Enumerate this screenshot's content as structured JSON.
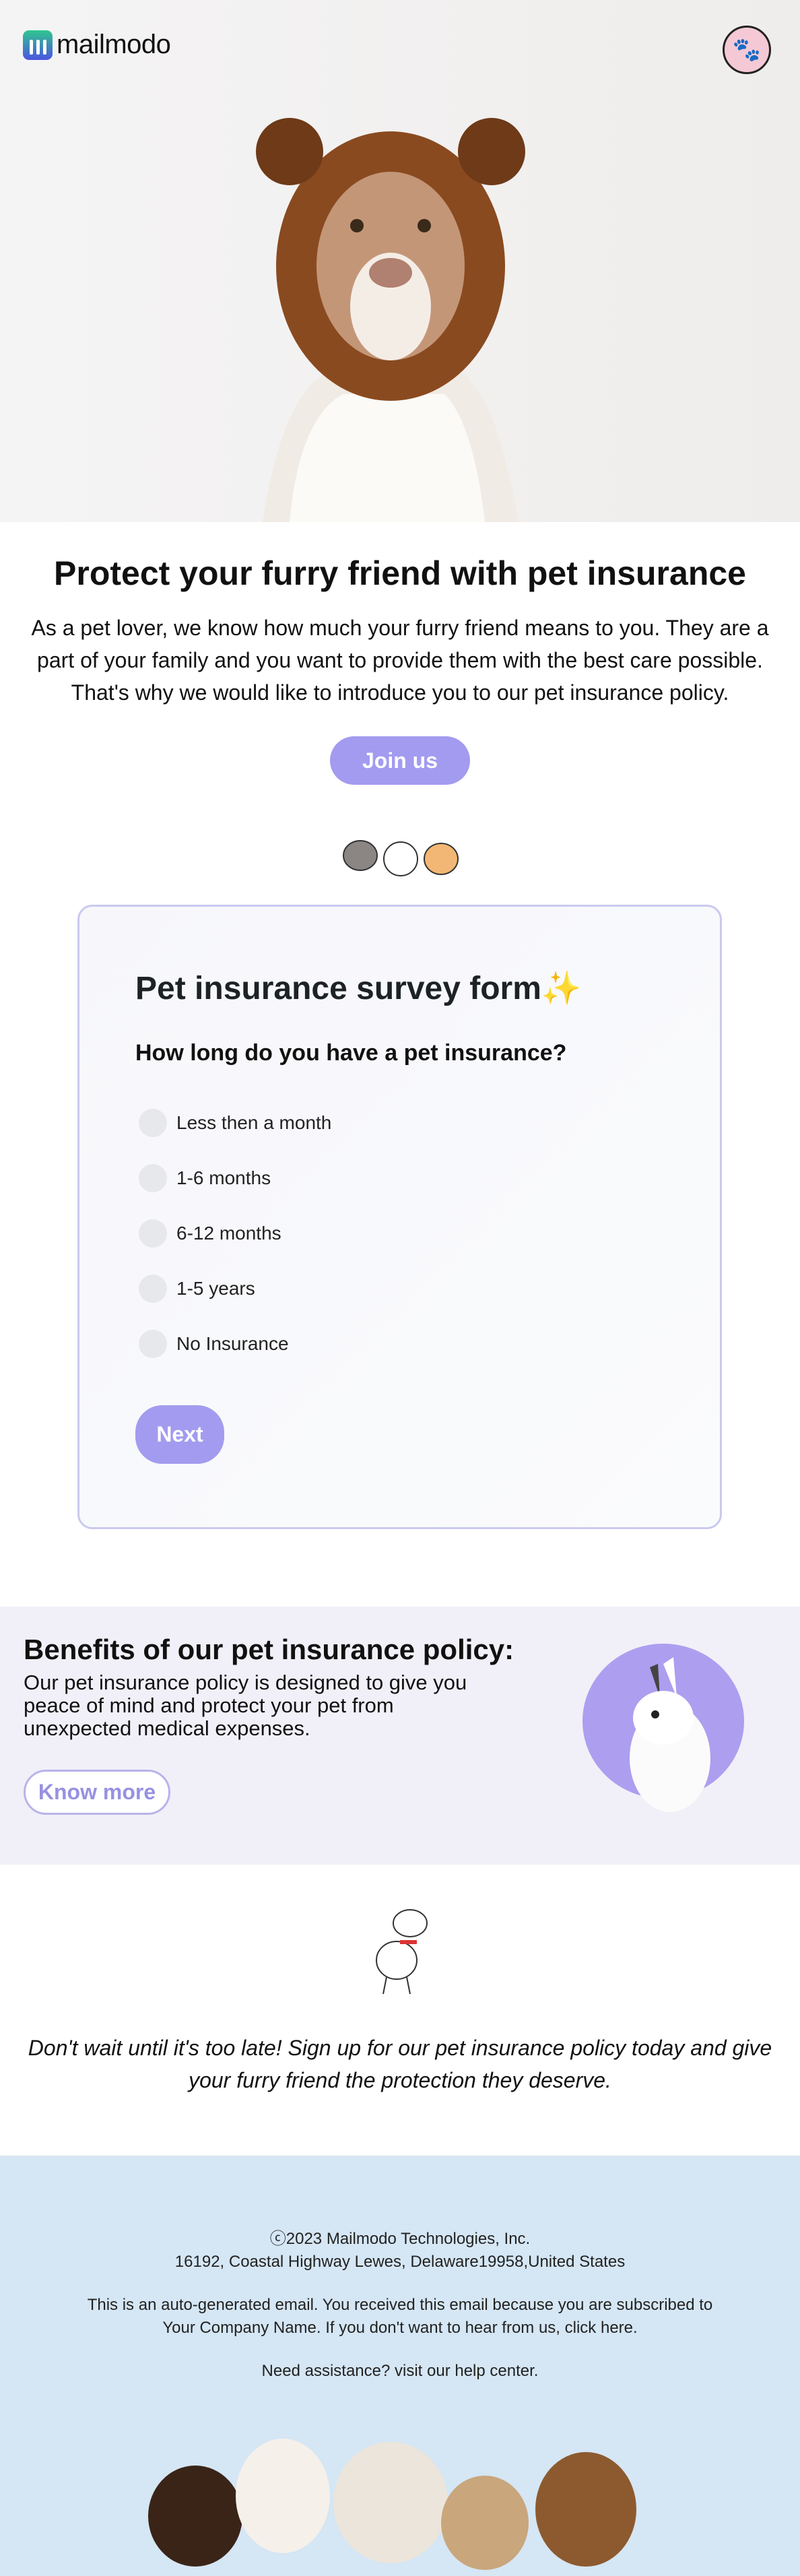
{
  "header": {
    "brand": "mailmodo",
    "logo_icon": "mailmodo-logo",
    "avatar_icon": "paw-avatar"
  },
  "hero": {
    "image": "dog-in-bear-hat"
  },
  "main": {
    "title": "Protect your furry friend with pet insurance",
    "intro": "As a pet lover, we know how much your furry friend means to you. They are a part of your family and you want to provide them with the best care possible. That's why we would like to introduce you to our pet insurance policy.",
    "join_label": "Join us",
    "pets_icon": "cartoon-pets"
  },
  "survey": {
    "title": "Pet insurance survey form",
    "sparkle": "✨",
    "question": "How long do you have a pet insurance?",
    "options": [
      "Less then a month",
      "1-6 months",
      "6-12 months",
      "1-5 years",
      "No Insurance"
    ],
    "next_label": "Next"
  },
  "benefits": {
    "title": "Benefits of our pet insurance policy:",
    "text": "Our pet insurance policy is designed to give you peace of mind and protect your pet from unexpected medical expenses.",
    "button_label": "Know more",
    "image": "white-rabbit"
  },
  "cta": {
    "text": "Don't wait until it's too late! Sign up for our pet insurance policy today and give your furry friend the protection they deserve.",
    "image": "cartoon-dog"
  },
  "footer": {
    "copyright": "ⓒ2023 Mailmodo Technologies, Inc.",
    "address": "16192, Coastal Highway Lewes, Delaware19958,United States",
    "notice_1": "This is an auto-generated email. You received this email because you are subscribed to",
    "notice_2": "Your Company Name. If you don't want to hear from us, click here.",
    "help": "Need assistance? visit our help center.",
    "image": "group-of-dogs"
  },
  "colors": {
    "accent": "#a39bef",
    "card_border": "#c9c9ef",
    "benefits_bg": "#f1f0f8",
    "footer_bg": "#d5e6f4"
  }
}
